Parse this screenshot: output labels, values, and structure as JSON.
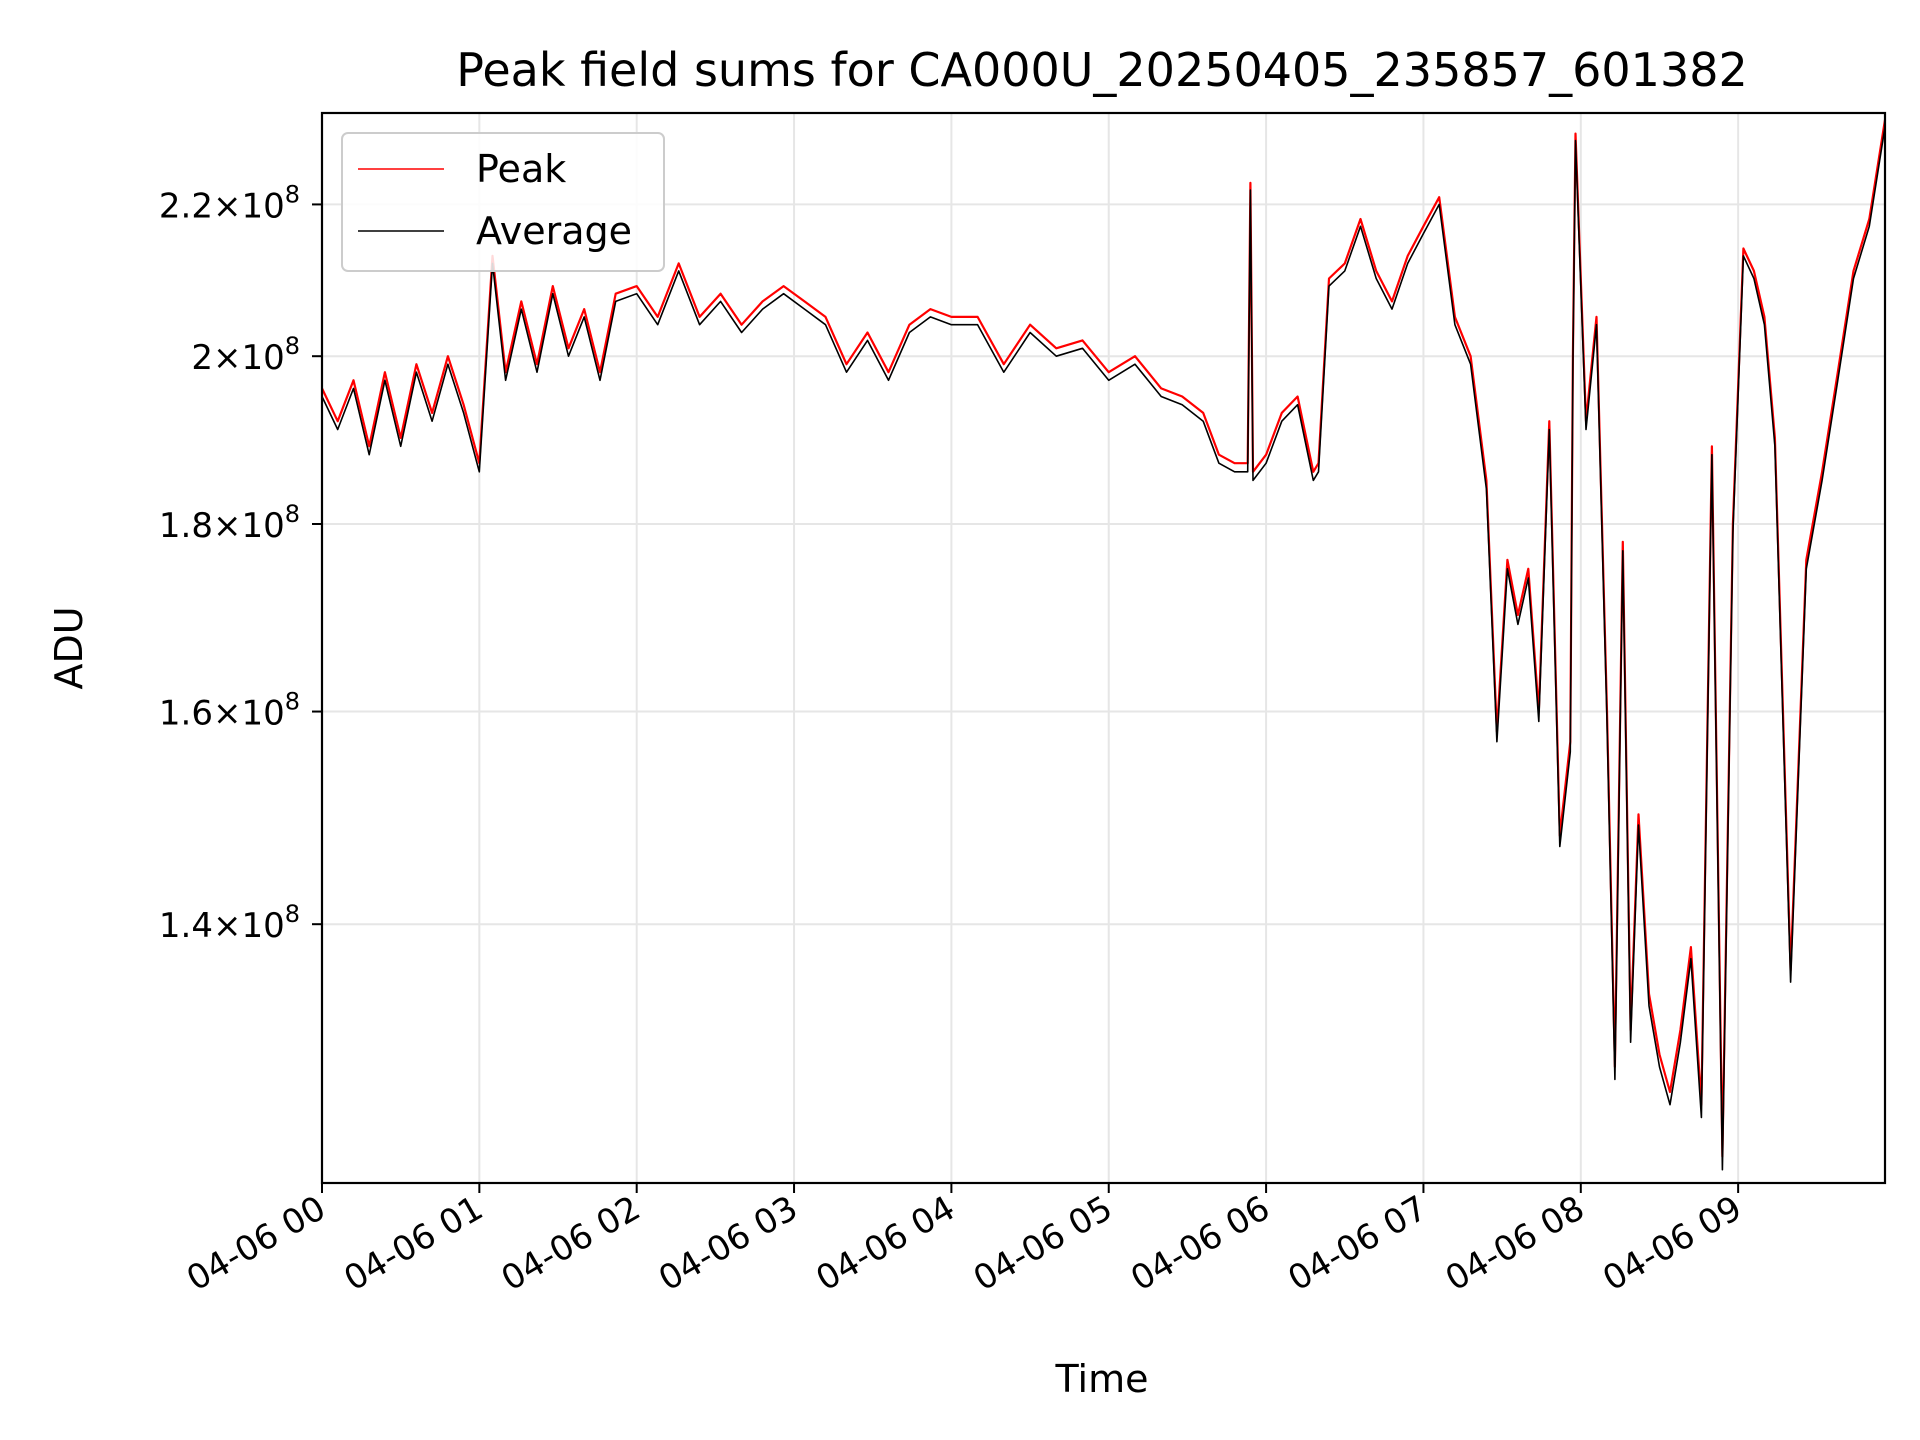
{
  "chart_data": {
    "type": "line",
    "title": "Peak field sums for CA000U_20250405_235857_601382",
    "xlabel": "Time",
    "ylabel": "ADU",
    "y_scale": "log",
    "grid": true,
    "legend_position": "top-left",
    "x_ticks": [
      "04-06 00",
      "04-06 01",
      "04-06 02",
      "04-06 03",
      "04-06 04",
      "04-06 05",
      "04-06 06",
      "04-06 07",
      "04-06 08",
      "04-06 09"
    ],
    "y_ticks": [
      {
        "value": 140000000,
        "mantissa": "1.4",
        "base": "10",
        "exp": "8"
      },
      {
        "value": 160000000,
        "mantissa": "1.6",
        "base": "10",
        "exp": "8"
      },
      {
        "value": 180000000,
        "mantissa": "1.8",
        "base": "10",
        "exp": "8"
      },
      {
        "value": 200000000,
        "mantissa": "2",
        "base": "10",
        "exp": "8"
      },
      {
        "value": 220000000,
        "mantissa": "2.2",
        "base": "10",
        "exp": "8"
      }
    ],
    "xlim": [
      "2025-04-06 00:00",
      "2025-04-06 09:56"
    ],
    "ylim": [
      119000000,
      233000000
    ],
    "series": [
      {
        "name": "Peak",
        "color": "#ff0000",
        "x": [
          "2025-04-06 00:00",
          "2025-04-06 00:06",
          "2025-04-06 00:12",
          "2025-04-06 00:18",
          "2025-04-06 00:24",
          "2025-04-06 00:30",
          "2025-04-06 00:36",
          "2025-04-06 00:42",
          "2025-04-06 00:48",
          "2025-04-06 00:54",
          "2025-04-06 01:00",
          "2025-04-06 01:05",
          "2025-04-06 01:10",
          "2025-04-06 01:16",
          "2025-04-06 01:22",
          "2025-04-06 01:28",
          "2025-04-06 01:34",
          "2025-04-06 01:40",
          "2025-04-06 01:46",
          "2025-04-06 01:52",
          "2025-04-06 02:00",
          "2025-04-06 02:08",
          "2025-04-06 02:16",
          "2025-04-06 02:24",
          "2025-04-06 02:32",
          "2025-04-06 02:40",
          "2025-04-06 02:48",
          "2025-04-06 02:56",
          "2025-04-06 03:04",
          "2025-04-06 03:12",
          "2025-04-06 03:20",
          "2025-04-06 03:28",
          "2025-04-06 03:36",
          "2025-04-06 03:44",
          "2025-04-06 03:52",
          "2025-04-06 04:00",
          "2025-04-06 04:10",
          "2025-04-06 04:20",
          "2025-04-06 04:30",
          "2025-04-06 04:40",
          "2025-04-06 04:50",
          "2025-04-06 05:00",
          "2025-04-06 05:10",
          "2025-04-06 05:20",
          "2025-04-06 05:28",
          "2025-04-06 05:36",
          "2025-04-06 05:42",
          "2025-04-06 05:48",
          "2025-04-06 05:53",
          "2025-04-06 05:54",
          "2025-04-06 05:55",
          "2025-04-06 06:00",
          "2025-04-06 06:06",
          "2025-04-06 06:12",
          "2025-04-06 06:18",
          "2025-04-06 06:20",
          "2025-04-06 06:24",
          "2025-04-06 06:30",
          "2025-04-06 06:36",
          "2025-04-06 06:42",
          "2025-04-06 06:48",
          "2025-04-06 06:54",
          "2025-04-06 07:00",
          "2025-04-06 07:06",
          "2025-04-06 07:12",
          "2025-04-06 07:18",
          "2025-04-06 07:24",
          "2025-04-06 07:28",
          "2025-04-06 07:32",
          "2025-04-06 07:36",
          "2025-04-06 07:40",
          "2025-04-06 07:44",
          "2025-04-06 07:48",
          "2025-04-06 07:52",
          "2025-04-06 07:56",
          "2025-04-06 07:57",
          "2025-04-06 07:58",
          "2025-04-06 08:02",
          "2025-04-06 08:06",
          "2025-04-06 08:10",
          "2025-04-06 08:13",
          "2025-04-06 08:16",
          "2025-04-06 08:19",
          "2025-04-06 08:22",
          "2025-04-06 08:26",
          "2025-04-06 08:30",
          "2025-04-06 08:34",
          "2025-04-06 08:38",
          "2025-04-06 08:42",
          "2025-04-06 08:46",
          "2025-04-06 08:50",
          "2025-04-06 08:54",
          "2025-04-06 08:58",
          "2025-04-06 09:02",
          "2025-04-06 09:06",
          "2025-04-06 09:10",
          "2025-04-06 09:14",
          "2025-04-06 09:20",
          "2025-04-06 09:26",
          "2025-04-06 09:32",
          "2025-04-06 09:38",
          "2025-04-06 09:44",
          "2025-04-06 09:50",
          "2025-04-06 09:56"
        ],
        "values": [
          196000000,
          192000000,
          197000000,
          189000000,
          198000000,
          190000000,
          199000000,
          193000000,
          200000000,
          194000000,
          187000000,
          213000000,
          198000000,
          207000000,
          199000000,
          209000000,
          201000000,
          206000000,
          198000000,
          208000000,
          209000000,
          205000000,
          212000000,
          205000000,
          208000000,
          204000000,
          207000000,
          209000000,
          207000000,
          205000000,
          199000000,
          203000000,
          198000000,
          204000000,
          206000000,
          205000000,
          205000000,
          199000000,
          204000000,
          201000000,
          202000000,
          198000000,
          200000000,
          196000000,
          195000000,
          193000000,
          188000000,
          187000000,
          187000000,
          223000000,
          186000000,
          188000000,
          193000000,
          195000000,
          186000000,
          187000000,
          210000000,
          212000000,
          218000000,
          211000000,
          207000000,
          213000000,
          217000000,
          221000000,
          205000000,
          200000000,
          185000000,
          158000000,
          176000000,
          170000000,
          175000000,
          160000000,
          192000000,
          148000000,
          157000000,
          200000000,
          230000000,
          192000000,
          205000000,
          160000000,
          128000000,
          178000000,
          131000000,
          150000000,
          134000000,
          129000000,
          126000000,
          131000000,
          138000000,
          125000000,
          189000000,
          121000000,
          180000000,
          214000000,
          211000000,
          205000000,
          190000000,
          136000000,
          176000000,
          186000000,
          198000000,
          211000000,
          218000000,
          232000000
        ]
      },
      {
        "name": "Average",
        "color": "#000000",
        "x": [
          "2025-04-06 00:00",
          "2025-04-06 00:06",
          "2025-04-06 00:12",
          "2025-04-06 00:18",
          "2025-04-06 00:24",
          "2025-04-06 00:30",
          "2025-04-06 00:36",
          "2025-04-06 00:42",
          "2025-04-06 00:48",
          "2025-04-06 00:54",
          "2025-04-06 01:00",
          "2025-04-06 01:05",
          "2025-04-06 01:10",
          "2025-04-06 01:16",
          "2025-04-06 01:22",
          "2025-04-06 01:28",
          "2025-04-06 01:34",
          "2025-04-06 01:40",
          "2025-04-06 01:46",
          "2025-04-06 01:52",
          "2025-04-06 02:00",
          "2025-04-06 02:08",
          "2025-04-06 02:16",
          "2025-04-06 02:24",
          "2025-04-06 02:32",
          "2025-04-06 02:40",
          "2025-04-06 02:48",
          "2025-04-06 02:56",
          "2025-04-06 03:04",
          "2025-04-06 03:12",
          "2025-04-06 03:20",
          "2025-04-06 03:28",
          "2025-04-06 03:36",
          "2025-04-06 03:44",
          "2025-04-06 03:52",
          "2025-04-06 04:00",
          "2025-04-06 04:10",
          "2025-04-06 04:20",
          "2025-04-06 04:30",
          "2025-04-06 04:40",
          "2025-04-06 04:50",
          "2025-04-06 05:00",
          "2025-04-06 05:10",
          "2025-04-06 05:20",
          "2025-04-06 05:28",
          "2025-04-06 05:36",
          "2025-04-06 05:42",
          "2025-04-06 05:48",
          "2025-04-06 05:53",
          "2025-04-06 05:54",
          "2025-04-06 05:55",
          "2025-04-06 06:00",
          "2025-04-06 06:06",
          "2025-04-06 06:12",
          "2025-04-06 06:18",
          "2025-04-06 06:20",
          "2025-04-06 06:24",
          "2025-04-06 06:30",
          "2025-04-06 06:36",
          "2025-04-06 06:42",
          "2025-04-06 06:48",
          "2025-04-06 06:54",
          "2025-04-06 07:00",
          "2025-04-06 07:06",
          "2025-04-06 07:12",
          "2025-04-06 07:18",
          "2025-04-06 07:24",
          "2025-04-06 07:28",
          "2025-04-06 07:32",
          "2025-04-06 07:36",
          "2025-04-06 07:40",
          "2025-04-06 07:44",
          "2025-04-06 07:48",
          "2025-04-06 07:52",
          "2025-04-06 07:56",
          "2025-04-06 07:57",
          "2025-04-06 07:58",
          "2025-04-06 08:02",
          "2025-04-06 08:06",
          "2025-04-06 08:10",
          "2025-04-06 08:13",
          "2025-04-06 08:16",
          "2025-04-06 08:19",
          "2025-04-06 08:22",
          "2025-04-06 08:26",
          "2025-04-06 08:30",
          "2025-04-06 08:34",
          "2025-04-06 08:38",
          "2025-04-06 08:42",
          "2025-04-06 08:46",
          "2025-04-06 08:50",
          "2025-04-06 08:54",
          "2025-04-06 08:58",
          "2025-04-06 09:02",
          "2025-04-06 09:06",
          "2025-04-06 09:10",
          "2025-04-06 09:14",
          "2025-04-06 09:20",
          "2025-04-06 09:26",
          "2025-04-06 09:32",
          "2025-04-06 09:38",
          "2025-04-06 09:44",
          "2025-04-06 09:50",
          "2025-04-06 09:56"
        ],
        "values": [
          195000000,
          191000000,
          196000000,
          188000000,
          197000000,
          189000000,
          198000000,
          192000000,
          199000000,
          193000000,
          186000000,
          212000000,
          197000000,
          206000000,
          198000000,
          208000000,
          200000000,
          205000000,
          197000000,
          207000000,
          208000000,
          204000000,
          211000000,
          204000000,
          207000000,
          203000000,
          206000000,
          208000000,
          206000000,
          204000000,
          198000000,
          202000000,
          197000000,
          203000000,
          205000000,
          204000000,
          204000000,
          198000000,
          203000000,
          200000000,
          201000000,
          197000000,
          199000000,
          195000000,
          194000000,
          192000000,
          187000000,
          186000000,
          186000000,
          222000000,
          185000000,
          187000000,
          192000000,
          194000000,
          185000000,
          186000000,
          209000000,
          211000000,
          217000000,
          210000000,
          206000000,
          212000000,
          216000000,
          220000000,
          204000000,
          199000000,
          184000000,
          157000000,
          175000000,
          169000000,
          174000000,
          159000000,
          191000000,
          147000000,
          156000000,
          199000000,
          229000000,
          191000000,
          204000000,
          159000000,
          127000000,
          177000000,
          130000000,
          149000000,
          133000000,
          128000000,
          125000000,
          130000000,
          137000000,
          124000000,
          188000000,
          120000000,
          179000000,
          213000000,
          210000000,
          204000000,
          189000000,
          135000000,
          175000000,
          185000000,
          197000000,
          210000000,
          217000000,
          231000000
        ]
      }
    ]
  }
}
